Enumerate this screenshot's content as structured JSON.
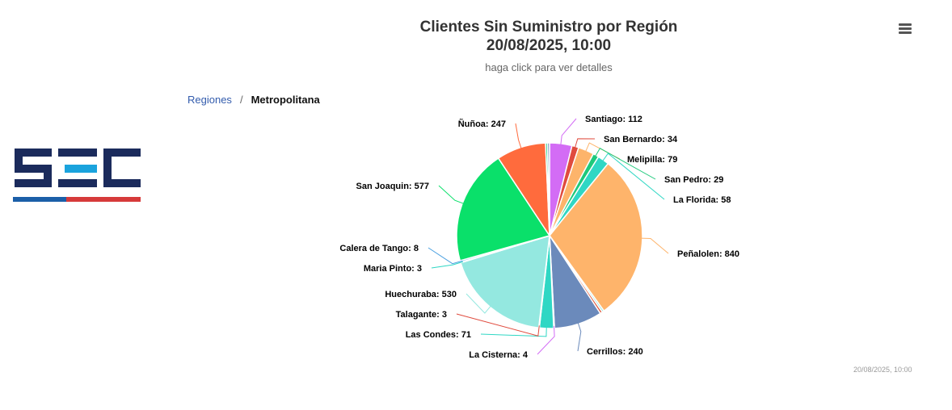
{
  "header": {
    "title_line1": "Clientes Sin Suministro por Región",
    "title_line2": "20/08/2025, 10:00",
    "subtitle": "haga click para ver detalles"
  },
  "breadcrumb": {
    "root": "Regiones",
    "separator": "/",
    "current": "Metropolitana"
  },
  "logo": {
    "text": "SEC",
    "colors": [
      "#1b2b5c",
      "#1aa3dd",
      "#d63a3a"
    ]
  },
  "menu": {
    "icon": "hamburger-menu-icon"
  },
  "credits": "20/08/2025, 10:00",
  "chart_data": {
    "type": "pie",
    "title": "Clientes Sin Suministro por Región",
    "subtitle": "haga click para ver detalles",
    "slices": [
      {
        "name": "Santiago",
        "value": 112,
        "color": "#d36cf5"
      },
      {
        "name": "San Bernardo",
        "value": 34,
        "color": "#e04b3e"
      },
      {
        "name": "Melipilla",
        "value": 79,
        "color": "#fdb46b"
      },
      {
        "name": "San Pedro",
        "value": 29,
        "color": "#1ec97b"
      },
      {
        "name": "La Florida",
        "value": 58,
        "color": "#2fd7c4"
      },
      {
        "name": "Peñalolen",
        "value": 840,
        "color": "#feb46b"
      },
      {
        "name": "",
        "value": 10,
        "color": "#9be8de"
      },
      {
        "name": "",
        "value": 12,
        "color": "#e0573a"
      },
      {
        "name": "Cerrillos",
        "value": 240,
        "color": "#6b8abb"
      },
      {
        "name": "La Cisterna",
        "value": 4,
        "color": "#d36cf5"
      },
      {
        "name": "Las Condes",
        "value": 71,
        "color": "#2fd7c4"
      },
      {
        "name": "Talagante",
        "value": 3,
        "color": "#e04b3e"
      },
      {
        "name": "Huechuraba",
        "value": 530,
        "color": "#94e8e0"
      },
      {
        "name": "Maria Pinto",
        "value": 3,
        "color": "#2fd7c4"
      },
      {
        "name": "Calera de Tango",
        "value": 8,
        "color": "#4aa0e0"
      },
      {
        "name": "San Joaquin",
        "value": 577,
        "color": "#0ae06a"
      },
      {
        "name": "Ñuñoa",
        "value": 247,
        "color": "#ff6b3d"
      },
      {
        "name": "",
        "value": 10,
        "color": "#1ec97b"
      },
      {
        "name": "",
        "value": 10,
        "color": "#6b8abb"
      }
    ],
    "labels": [
      {
        "text": "Santiago: 112",
        "slice": 0
      },
      {
        "text": "San Bernardo: 34",
        "slice": 1
      },
      {
        "text": "Melipilla: 79",
        "slice": 2
      },
      {
        "text": "San Pedro: 29",
        "slice": 3
      },
      {
        "text": "La Florida: 58",
        "slice": 4
      },
      {
        "text": "Peñalolen: 840",
        "slice": 5
      },
      {
        "text": "Cerrillos: 240",
        "slice": 8
      },
      {
        "text": "La Cisterna: 4",
        "slice": 9
      },
      {
        "text": "Las Condes: 71",
        "slice": 10
      },
      {
        "text": "Talagante: 3",
        "slice": 11
      },
      {
        "text": "Huechuraba: 530",
        "slice": 12
      },
      {
        "text": "Maria Pinto: 3",
        "slice": 13
      },
      {
        "text": "Calera de Tango: 8",
        "slice": 14
      },
      {
        "text": "San Joaquin: 577",
        "slice": 15
      },
      {
        "text": "Ñuñoa: 247",
        "slice": 16
      }
    ]
  }
}
